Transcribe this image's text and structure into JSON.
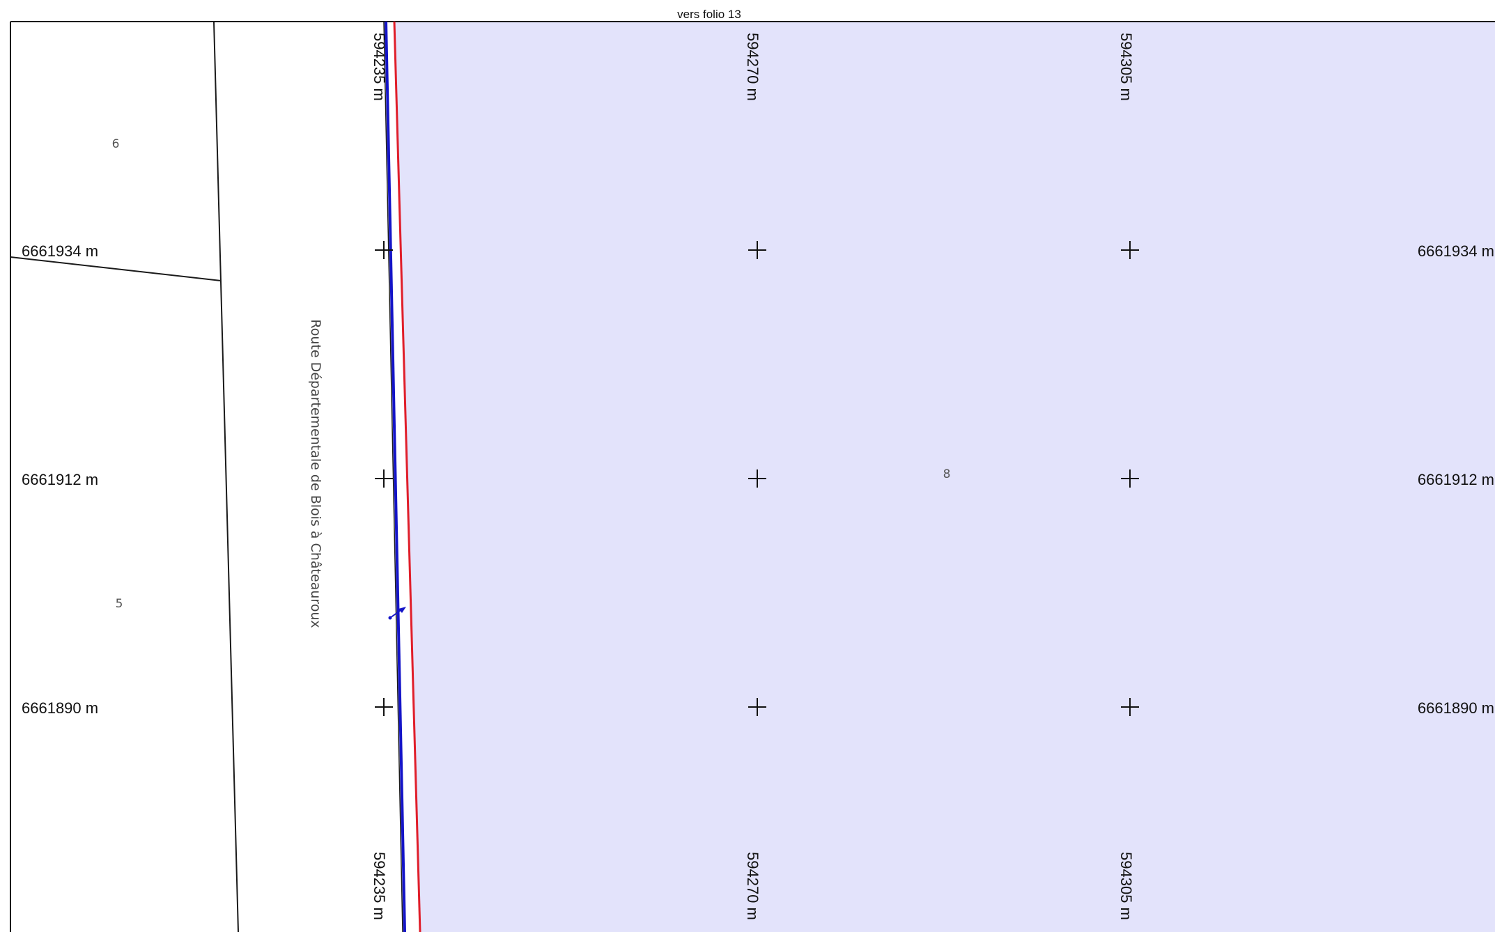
{
  "header": {
    "text": "vers folio 13"
  },
  "parcels": [
    {
      "id": "parcel-6",
      "number": "6"
    },
    {
      "id": "parcel-5",
      "number": "5"
    },
    {
      "id": "parcel-8",
      "number": "8"
    }
  ],
  "road": {
    "name": "Route Départementale de Blois à Châteauroux"
  },
  "grid": {
    "eastings": [
      "594235 m",
      "594270 m",
      "594305 m"
    ],
    "northings": [
      "6661934 m",
      "6661912 m",
      "6661890 m"
    ],
    "marker_glyph": "+"
  },
  "colors": {
    "parcel_fill": "#e3e3fb",
    "boundary_blue": "#1414c8",
    "boundary_red": "#e01e2a",
    "line_black": "#1a1a1a"
  }
}
